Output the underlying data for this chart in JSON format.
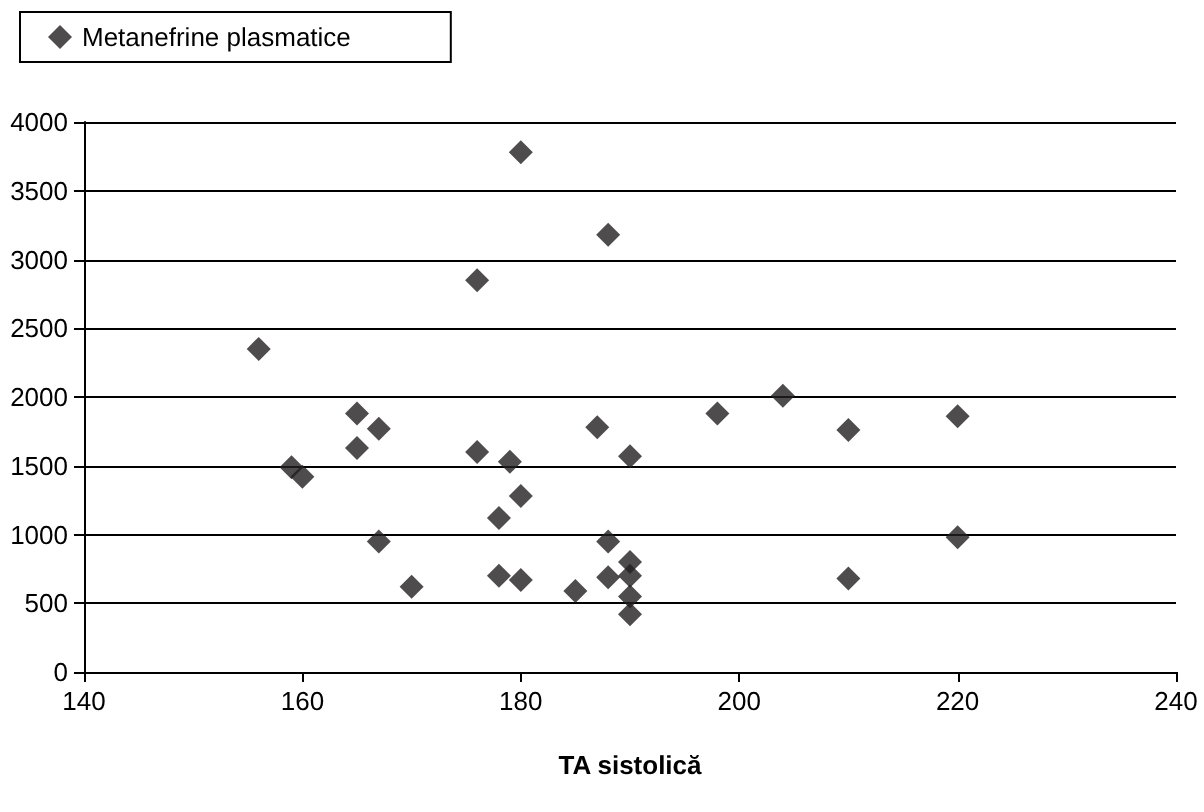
{
  "chart_data": {
    "type": "scatter",
    "xlabel": "TA sistolică",
    "xlim": [
      140,
      240
    ],
    "xticks": [
      140,
      160,
      180,
      200,
      220,
      240
    ],
    "ylim": [
      0,
      4000
    ],
    "yticks": [
      0,
      500,
      1000,
      1500,
      2000,
      2500,
      3000,
      3500,
      4000
    ],
    "grid": "y",
    "legend": "top left",
    "marker": "diamond",
    "series": [
      {
        "name": "Metanefrine plasmatice",
        "color": "#231f20",
        "x": [
          156,
          159,
          160,
          165,
          165,
          167,
          167,
          170,
          176,
          176,
          178,
          178,
          179,
          180,
          180,
          180,
          185,
          187,
          188,
          188,
          188,
          190,
          190,
          190,
          190,
          190,
          198,
          204,
          210,
          210,
          220,
          220
        ],
        "values": [
          2350,
          1490,
          1420,
          1880,
          1630,
          1770,
          950,
          620,
          2850,
          1600,
          1120,
          700,
          1530,
          1280,
          670,
          3780,
          590,
          1780,
          950,
          690,
          3180,
          1570,
          800,
          700,
          550,
          420,
          1880,
          2010,
          1760,
          680,
          1860,
          980
        ]
      }
    ]
  }
}
